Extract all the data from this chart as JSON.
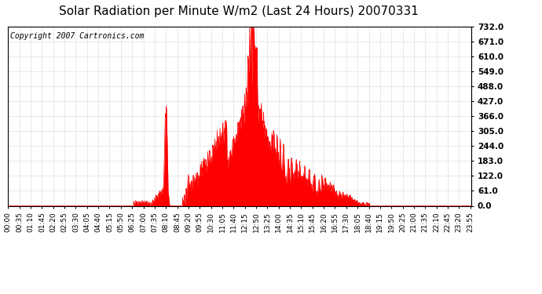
{
  "title": "Solar Radiation per Minute W/m2 (Last 24 Hours) 20070331",
  "copyright": "Copyright 2007 Cartronics.com",
  "yticks": [
    0.0,
    61.0,
    122.0,
    183.0,
    244.0,
    305.0,
    366.0,
    427.0,
    488.0,
    549.0,
    610.0,
    671.0,
    732.0
  ],
  "ymax": 732.0,
  "ymin": 0.0,
  "fill_color": "#ff0000",
  "line_color": "#ff0000",
  "bg_color": "#ffffff",
  "plot_bg_color": "#ffffff",
  "grid_color": "#bbbbbb",
  "dashed_line_color": "#ff0000",
  "title_fontsize": 11,
  "copyright_fontsize": 7,
  "tick_fontsize": 6.5,
  "ytick_fontsize": 7.5
}
